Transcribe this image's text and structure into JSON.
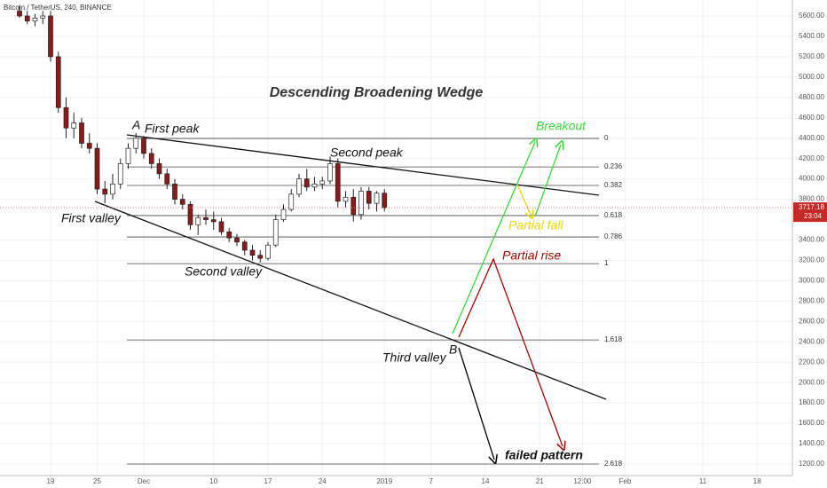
{
  "chart_data": {
    "type": "candlestick",
    "symbol_title": "Bitcoin / TetherUS, 240, BINANCE",
    "title": "Descending Broadening Wedge",
    "x": [
      14,
      15,
      16,
      17,
      18,
      19,
      20,
      21,
      22,
      23,
      24,
      25,
      26,
      27,
      28,
      29,
      30,
      31,
      32,
      33,
      34,
      35,
      36,
      37,
      38,
      39,
      40,
      41,
      42,
      43,
      44,
      45,
      46,
      47,
      48,
      49,
      50,
      51,
      52,
      53,
      54,
      55,
      56,
      57,
      58,
      59,
      60,
      61
    ],
    "open": [
      5650,
      5600,
      5550,
      5580,
      5600,
      5200,
      4700,
      4500,
      4550,
      4350,
      4300,
      3900,
      3850,
      3950,
      4150,
      4300,
      4400,
      4250,
      4150,
      4050,
      3950,
      3800,
      3750,
      3550,
      3620,
      3600,
      3580,
      3480,
      3420,
      3380,
      3300,
      3250,
      3220,
      3350,
      3600,
      3700,
      3850,
      4000,
      3920,
      3950,
      3980,
      4150,
      3780,
      3820,
      3650,
      3880,
      3760,
      3860
    ],
    "high": [
      5700,
      5650,
      5620,
      5650,
      5650,
      5250,
      4800,
      4650,
      4600,
      4450,
      4350,
      3980,
      4050,
      4200,
      4350,
      4450,
      4420,
      4300,
      4200,
      4100,
      4000,
      3850,
      3780,
      3650,
      3700,
      3680,
      3620,
      3520,
      3460,
      3400,
      3350,
      3300,
      3380,
      3650,
      3750,
      3900,
      4050,
      4100,
      4020,
      4020,
      4220,
      4200,
      3880,
      3900,
      3920,
      3920,
      3880,
      3900
    ],
    "low": [
      5580,
      5520,
      5500,
      5520,
      5150,
      4650,
      4400,
      4400,
      4300,
      4250,
      3850,
      3760,
      3800,
      3900,
      4100,
      4250,
      4200,
      4100,
      4000,
      3900,
      3750,
      3700,
      3500,
      3450,
      3550,
      3500,
      3450,
      3380,
      3340,
      3250,
      3200,
      3180,
      3200,
      3330,
      3580,
      3680,
      3820,
      3880,
      3880,
      3900,
      3950,
      3720,
      3720,
      3580,
      3600,
      3700,
      3680,
      3680
    ],
    "close": [
      5600,
      5550,
      5580,
      5600,
      5200,
      4700,
      4500,
      4550,
      4350,
      4300,
      3900,
      3850,
      3950,
      4150,
      4300,
      4400,
      4250,
      4150,
      4050,
      3950,
      3800,
      3750,
      3550,
      3620,
      3600,
      3580,
      3480,
      3420,
      3380,
      3300,
      3250,
      3220,
      3350,
      3600,
      3700,
      3850,
      4000,
      3920,
      3950,
      3980,
      4150,
      3780,
      3820,
      3650,
      3880,
      3760,
      3860,
      3717
    ],
    "xlim": [
      11,
      115
    ],
    "xticks": [
      {
        "value": 18,
        "label": "19"
      },
      {
        "value": 24,
        "label": "25"
      },
      {
        "value": 30,
        "label": "Dec"
      },
      {
        "value": 39,
        "label": "10"
      },
      {
        "value": 46,
        "label": "17"
      },
      {
        "value": 53,
        "label": "24"
      },
      {
        "value": 61,
        "label": "2019"
      },
      {
        "value": 67,
        "label": "7"
      },
      {
        "value": 74,
        "label": "14"
      },
      {
        "value": 81,
        "label": "21"
      },
      {
        "value": 86.5,
        "label": "12:00"
      },
      {
        "value": 92,
        "label": "Feb"
      },
      {
        "value": 102,
        "label": "11"
      },
      {
        "value": 109,
        "label": "18"
      }
    ],
    "ylim": [
      1128,
      5780
    ],
    "yticks": [
      {
        "value": 1200,
        "label": "1200.00"
      },
      {
        "value": 1400,
        "label": "1400.00"
      },
      {
        "value": 1600,
        "label": "1600.00"
      },
      {
        "value": 1800,
        "label": "1800.00"
      },
      {
        "value": 2000,
        "label": "2000.00"
      },
      {
        "value": 2200,
        "label": "2200.00"
      },
      {
        "value": 2400,
        "label": "2400.00"
      },
      {
        "value": 2600,
        "label": "2600.00"
      },
      {
        "value": 2800,
        "label": "2800.00"
      },
      {
        "value": 3000,
        "label": "3000.00"
      },
      {
        "value": 3200,
        "label": "3200.00"
      },
      {
        "value": 3400,
        "label": "3400.00"
      },
      {
        "value": 3800,
        "label": "3800.00"
      },
      {
        "value": 4000,
        "label": "4000.00"
      },
      {
        "value": 4200,
        "label": "4200.00"
      },
      {
        "value": 4400,
        "label": "4400.00"
      },
      {
        "value": 4600,
        "label": "4600.00"
      },
      {
        "value": 4800,
        "label": "4800.00"
      },
      {
        "value": 5000,
        "label": "5000.00"
      },
      {
        "value": 5200,
        "label": "5200.00"
      },
      {
        "value": 5400,
        "label": "5400.00"
      },
      {
        "value": 5600,
        "label": "5600.00"
      }
    ],
    "grid": true,
    "up_color": "#ffffff",
    "down_color": "#8b1a1a",
    "last_price": 3717.18,
    "countdown": "23:04",
    "fib_levels": [
      0,
      0.236,
      0.382,
      0.618,
      0.786,
      1,
      1.618,
      2.618
    ],
    "fib_prices": [
      4397,
      4118,
      3936,
      3640,
      3430,
      3168,
      2419,
      1200
    ],
    "annotations": {
      "a": "A",
      "b": "B",
      "first_peak": "First peak",
      "second_peak": "Second peak",
      "first_valley": "First valley",
      "second_valley": "Second valley",
      "third_valley": "Third valley",
      "breakout": "Breakout",
      "partial_fall": "Partial fall",
      "partial_rise": "Partial rise",
      "failed": "failed pattern"
    }
  }
}
